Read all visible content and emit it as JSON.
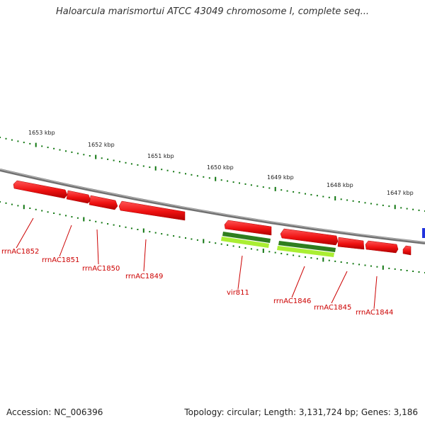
{
  "title": "Haloarcula marismortui ATCC 43049 chromosome I, complete seq...",
  "ticks": [
    "1653 kbp",
    "1652 kbp",
    "1651 kbp",
    "1650 kbp",
    "1649 kbp",
    "1648 kbp",
    "1647 kbp"
  ],
  "gene_labels": [
    "rrnAC1852",
    "rrnAC1851",
    "rrnAC1850",
    "rrnAC1849",
    "vir811",
    "rrnAC1846",
    "rrnAC1845",
    "rrnAC1844"
  ],
  "footer": {
    "accession": "Accession: NC_006396",
    "summary": "Topology: circular; Length: 3,131,724 bp; Genes: 3,186"
  },
  "colors": {
    "gene": "#ee1111",
    "gene_dark": "#b00000",
    "gene_light": "#ff7777",
    "backbone": "#888888",
    "tick": "#117711",
    "rna_dark": "#2e7d1e",
    "rna_light": "#aaee33",
    "label": "#cc0000",
    "marker": "#2233dd"
  }
}
